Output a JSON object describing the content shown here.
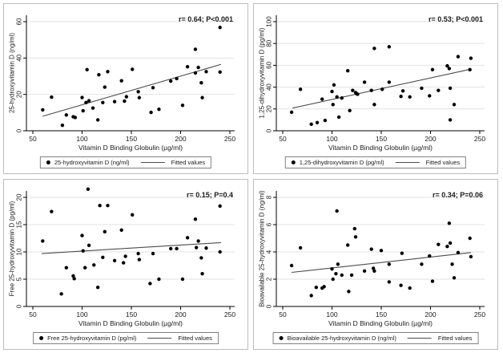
{
  "colors": {
    "background": "#ffffff",
    "panel_border": "#bdbdbd",
    "grid": "#e2e2e2",
    "axis": "#000000",
    "point": "#000000",
    "fit_line": "#4d4d4d",
    "text": "#1a1a1a",
    "legend_border": "#808080"
  },
  "chart_data": [
    {
      "type": "scatter",
      "annotation": "r= 0.64; P<0.001",
      "xlabel": "Vitamin D Binding Globulin (µg/ml)",
      "ylabel": "25-hydroxyvitamin D (ng/ml)",
      "xlim": [
        40,
        260
      ],
      "ylim": [
        0,
        60
      ],
      "xticks": [
        50,
        100,
        150,
        200,
        250
      ],
      "yticks": [
        0,
        20,
        40,
        60
      ],
      "legend": {
        "marker_label": "25-hydroxyvitamin D (ng/ml)",
        "line_label": "Fitted values"
      },
      "grid": "horizontal",
      "legend_position": "bottom",
      "points": [
        [
          60,
          11.5
        ],
        [
          69,
          18.5
        ],
        [
          80,
          3
        ],
        [
          84,
          8.7
        ],
        [
          91,
          7.7
        ],
        [
          93,
          7.3
        ],
        [
          100,
          18.3
        ],
        [
          101,
          11
        ],
        [
          104,
          15.5
        ],
        [
          105,
          33.6
        ],
        [
          107,
          16.5
        ],
        [
          111,
          12.5
        ],
        [
          116,
          6
        ],
        [
          117,
          30.8
        ],
        [
          121,
          15.5
        ],
        [
          123,
          24
        ],
        [
          126,
          32.5
        ],
        [
          133,
          16
        ],
        [
          140,
          27.5
        ],
        [
          143,
          16.3
        ],
        [
          145,
          18.7
        ],
        [
          151,
          33.8
        ],
        [
          157,
          21.5
        ],
        [
          158,
          18.2
        ],
        [
          170,
          10.1
        ],
        [
          172,
          23.7
        ],
        [
          178,
          11.8
        ],
        [
          190,
          27.3
        ],
        [
          196,
          28.7
        ],
        [
          202,
          14
        ],
        [
          207,
          35.2
        ],
        [
          215,
          44.8
        ],
        [
          215,
          31.8
        ],
        [
          218,
          34.8
        ],
        [
          221,
          26.4
        ],
        [
          222,
          18.2
        ],
        [
          226,
          32.5
        ],
        [
          240,
          56.8
        ],
        [
          240,
          32.3
        ]
      ],
      "fit_line": {
        "x1": 60,
        "y1": 8,
        "x2": 241,
        "y2": 36.5
      }
    },
    {
      "type": "scatter",
      "annotation": "r= 0.53; P<0.001",
      "xlabel": "Vitamin D Binding Globulin (µg/ml)",
      "ylabel": "1,25-dihydroxyvitamin D (pg/ml)",
      "xlim": [
        40,
        260
      ],
      "ylim": [
        0,
        100
      ],
      "xticks": [
        50,
        100,
        150,
        200,
        250
      ],
      "yticks": [
        0,
        20,
        40,
        60,
        80,
        100
      ],
      "legend": {
        "marker_label": "1,25-dihydroxyvitamin D (pg/ml)",
        "line_label": "Fitted values"
      },
      "grid": "horizontal",
      "legend_position": "bottom",
      "points": [
        [
          59,
          17
        ],
        [
          68,
          38
        ],
        [
          79,
          6
        ],
        [
          85,
          7.5
        ],
        [
          90,
          29
        ],
        [
          93,
          9.5
        ],
        [
          100,
          36
        ],
        [
          101,
          24
        ],
        [
          102,
          42
        ],
        [
          105,
          31
        ],
        [
          107,
          12.5
        ],
        [
          110,
          30
        ],
        [
          116,
          55
        ],
        [
          118,
          18.5
        ],
        [
          121,
          37
        ],
        [
          124,
          35
        ],
        [
          125,
          34
        ],
        [
          126,
          33.5
        ],
        [
          133,
          44.5
        ],
        [
          140,
          37
        ],
        [
          143,
          75.5
        ],
        [
          143,
          24
        ],
        [
          151,
          38
        ],
        [
          158,
          77
        ],
        [
          158,
          44.5
        ],
        [
          170,
          31.5
        ],
        [
          172,
          36.5
        ],
        [
          179,
          31
        ],
        [
          191,
          39
        ],
        [
          199,
          32
        ],
        [
          202,
          56
        ],
        [
          208,
          37
        ],
        [
          217,
          59.5
        ],
        [
          219,
          57
        ],
        [
          220,
          10
        ],
        [
          220,
          39
        ],
        [
          224,
          24
        ],
        [
          228,
          68
        ],
        [
          240,
          56
        ],
        [
          241,
          66.5
        ]
      ],
      "fit_line": {
        "x1": 60,
        "y1": 20.8,
        "x2": 241,
        "y2": 56.5
      }
    },
    {
      "type": "scatter",
      "annotation": "r= 0.15; P=0.4",
      "xlabel": "Vitamin D Binding Globulin (µg/ml)",
      "ylabel": "Free 25-hydroxyvitamin D (pg/ml)",
      "xlim": [
        40,
        260
      ],
      "ylim": [
        0,
        20
      ],
      "xticks": [
        50,
        100,
        150,
        200,
        250
      ],
      "yticks": [
        0,
        5,
        10,
        15,
        20
      ],
      "legend": {
        "marker_label": "Free 25-hydroxyvitamin D (pg/ml)",
        "line_label": "Fitted values"
      },
      "grid": "horizontal",
      "legend_position": "bottom",
      "points": [
        [
          60,
          12
        ],
        [
          69,
          17.4
        ],
        [
          79,
          2.3
        ],
        [
          84,
          7.1
        ],
        [
          91,
          5.6
        ],
        [
          92,
          5.1
        ],
        [
          100,
          13
        ],
        [
          101,
          10.2
        ],
        [
          103,
          7.1
        ],
        [
          106,
          21.5
        ],
        [
          107,
          11.2
        ],
        [
          112,
          7.6
        ],
        [
          116,
          3.5
        ],
        [
          118,
          18.5
        ],
        [
          121,
          9
        ],
        [
          123,
          13.7
        ],
        [
          126,
          18.5
        ],
        [
          133,
          8.4
        ],
        [
          140,
          14
        ],
        [
          142,
          8
        ],
        [
          144,
          9.2
        ],
        [
          151,
          16.8
        ],
        [
          157,
          9.7
        ],
        [
          158,
          8.6
        ],
        [
          169,
          4.2
        ],
        [
          172,
          9.7
        ],
        [
          178,
          5
        ],
        [
          190,
          10.6
        ],
        [
          196,
          10.6
        ],
        [
          202,
          5
        ],
        [
          207,
          12.6
        ],
        [
          215,
          16
        ],
        [
          216,
          10.8
        ],
        [
          218,
          12
        ],
        [
          221,
          8.9
        ],
        [
          222,
          6
        ],
        [
          226,
          10.7
        ],
        [
          240,
          18.4
        ],
        [
          240,
          10
        ]
      ],
      "fit_line": {
        "x1": 59,
        "y1": 9.7,
        "x2": 241,
        "y2": 11.7
      }
    },
    {
      "type": "scatter",
      "annotation": "r= 0.34; P=0.06",
      "xlabel": "Vitamin D Binding Globulin (µg/ml)",
      "ylabel": "Bioavailable 25-hydroxyvitamin D (ng/ml)",
      "xlim": [
        40,
        260
      ],
      "ylim": [
        0,
        8
      ],
      "xticks": [
        50,
        100,
        150,
        200,
        250
      ],
      "yticks": [
        0,
        2,
        4,
        6,
        8
      ],
      "legend": {
        "marker_label": "Bioavailable 25-hydroxyvitamin D (ng/ml)",
        "line_label": "Fitted values"
      },
      "grid": "horizontal",
      "legend_position": "bottom",
      "points": [
        [
          59,
          3
        ],
        [
          68,
          4.3
        ],
        [
          79,
          0.8
        ],
        [
          84,
          1.4
        ],
        [
          90,
          1.35
        ],
        [
          92,
          1.45
        ],
        [
          100,
          2.75
        ],
        [
          101,
          2
        ],
        [
          104,
          2.4
        ],
        [
          105,
          7
        ],
        [
          106,
          3.1
        ],
        [
          110,
          2.3
        ],
        [
          116,
          4.5
        ],
        [
          117,
          1.1
        ],
        [
          120,
          2.3
        ],
        [
          123,
          5.7
        ],
        [
          124,
          5.1
        ],
        [
          133,
          2.6
        ],
        [
          140,
          4.2
        ],
        [
          142,
          2.8
        ],
        [
          143,
          2.6
        ],
        [
          150,
          4.1
        ],
        [
          158,
          3.1
        ],
        [
          158,
          1.8
        ],
        [
          170,
          1.55
        ],
        [
          171,
          3.9
        ],
        [
          179,
          1.35
        ],
        [
          191,
          3.1
        ],
        [
          199,
          3.7
        ],
        [
          202,
          1.85
        ],
        [
          208,
          4.55
        ],
        [
          217,
          4.4
        ],
        [
          219,
          6.1
        ],
        [
          220,
          4.65
        ],
        [
          222,
          3.1
        ],
        [
          224,
          2.1
        ],
        [
          228,
          3.95
        ],
        [
          240,
          5
        ],
        [
          241,
          3.65
        ]
      ],
      "fit_line": {
        "x1": 59,
        "y1": 2.5,
        "x2": 241,
        "y2": 3.95
      }
    }
  ]
}
